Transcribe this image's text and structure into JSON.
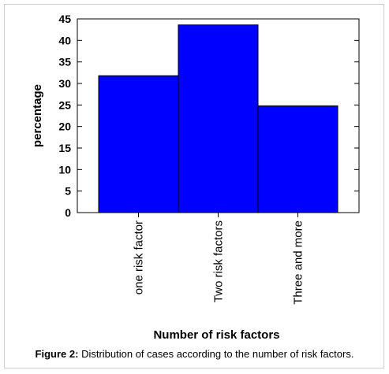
{
  "chart_data": {
    "type": "bar",
    "categories": [
      "one risk factor",
      "Two risk factors",
      "Three and more"
    ],
    "values": [
      31.8,
      43.6,
      24.8
    ],
    "xlabel": "Number of risk factors",
    "ylabel": "percentage",
    "ylim": [
      0,
      45
    ],
    "yticks": [
      "0",
      "5",
      "10",
      "15",
      "20",
      "25",
      "30",
      "35",
      "40",
      "45"
    ],
    "bar_color": "#0000ff",
    "grid": false
  },
  "caption": {
    "label": "Figure 2:",
    "text": " Distribution of cases according to the number of risk factors."
  }
}
